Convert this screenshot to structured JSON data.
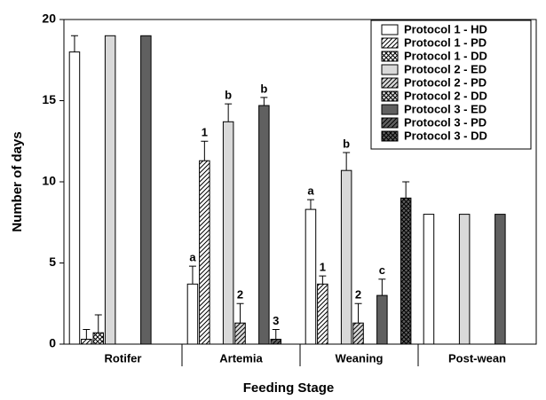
{
  "chart_data": {
    "type": "bar",
    "x_label": "Feeding Stage",
    "y_label": "Number of days",
    "categories": [
      "Rotifer",
      "Artemia",
      "Weaning",
      "Post-wean"
    ],
    "ylim": [
      0,
      20
    ],
    "yticks": [
      0,
      5,
      10,
      15,
      20
    ],
    "legend": "upper right",
    "series": [
      {
        "name": "Protocol 1 - HD",
        "color": "#ffffff",
        "pattern": "solid",
        "values": [
          18,
          3.7,
          8.3,
          8
        ],
        "errors": [
          1,
          1.1,
          0.6,
          null
        ],
        "annotations": [
          null,
          "a",
          "a",
          null
        ]
      },
      {
        "name": "Protocol 1 - PD",
        "color": "#ffffff",
        "pattern": "hatch",
        "values": [
          0.3,
          11.3,
          3.7,
          null
        ],
        "errors": [
          0.6,
          1.2,
          0.5,
          null
        ],
        "annotations": [
          null,
          "1",
          "1",
          null
        ]
      },
      {
        "name": "Protocol 1 - DD",
        "color": "#ffffff",
        "pattern": "cross",
        "values": [
          0.7,
          null,
          null,
          null
        ],
        "errors": [
          1.1,
          null,
          null,
          null
        ],
        "annotations": [
          null,
          null,
          null,
          null
        ]
      },
      {
        "name": "Protocol 2 - ED",
        "color": "#d9d9d9",
        "pattern": "solid",
        "values": [
          19,
          13.7,
          10.7,
          8
        ],
        "errors": [
          null,
          1.1,
          1.1,
          null
        ],
        "annotations": [
          null,
          "b",
          "b",
          null
        ]
      },
      {
        "name": "Protocol 2 - PD",
        "color": "#d9d9d9",
        "pattern": "hatch",
        "values": [
          null,
          1.3,
          1.3,
          null
        ],
        "errors": [
          null,
          1.2,
          1.2,
          null
        ],
        "annotations": [
          null,
          "2",
          "2",
          null
        ]
      },
      {
        "name": "Protocol 2 - DD",
        "color": "#d9d9d9",
        "pattern": "cross",
        "values": [
          null,
          null,
          null,
          null
        ],
        "errors": [
          null,
          null,
          null,
          null
        ],
        "annotations": [
          null,
          null,
          null,
          null
        ]
      },
      {
        "name": "Protocol 3 - ED",
        "color": "#606060",
        "pattern": "solid",
        "values": [
          19,
          14.7,
          3,
          8
        ],
        "errors": [
          null,
          0.5,
          1,
          null
        ],
        "annotations": [
          null,
          "b",
          "c",
          null
        ]
      },
      {
        "name": "Protocol 3 - PD",
        "color": "#606060",
        "pattern": "hatch",
        "values": [
          null,
          0.3,
          null,
          null
        ],
        "errors": [
          null,
          0.6,
          null,
          null
        ],
        "annotations": [
          null,
          "3",
          null,
          null
        ]
      },
      {
        "name": "Protocol 3 - DD",
        "color": "#606060",
        "pattern": "cross",
        "values": [
          null,
          null,
          9,
          null
        ],
        "errors": [
          null,
          null,
          1,
          null
        ],
        "annotations": [
          null,
          null,
          null,
          null
        ]
      }
    ]
  }
}
